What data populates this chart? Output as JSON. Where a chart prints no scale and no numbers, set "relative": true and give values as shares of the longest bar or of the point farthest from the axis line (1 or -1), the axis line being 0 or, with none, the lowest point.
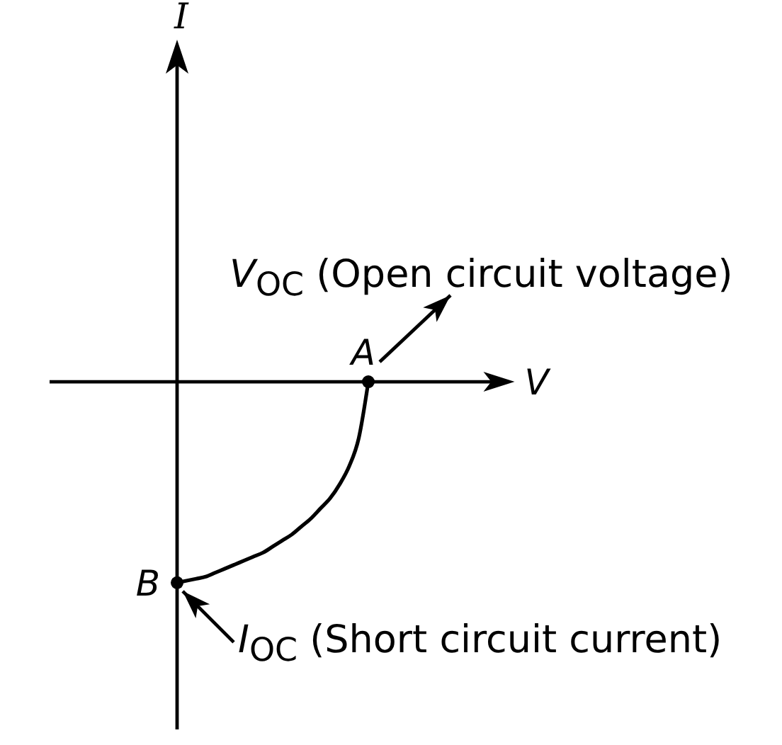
{
  "chart_data": {
    "type": "line",
    "xlabel": "V",
    "relative": true,
    "categories": [
      null,
      null,
      null,
      null,
      null,
      null,
      null,
      null,
      null,
      null,
      null,
      null,
      null,
      null,
      null,
      null,
      null,
      null,
      null,
      null,
      null,
      null,
      null,
      null,
      null,
      null,
      null,
      null,
      null,
      null,
      null,
      null,
      null,
      null,
      null,
      null
    ],
    "values": [
      -1,
      -0.99,
      -0.98,
      -0.97,
      -0.95,
      -0.93,
      -0.91,
      -0.89,
      -0.87,
      -0.85,
      -0.82,
      -0.79,
      -0.76,
      -0.72,
      -0.68,
      -0.63,
      -0.58,
      -0.51,
      -0.42,
      -0.28,
      0,
      null,
      null,
      null,
      null,
      null,
      null,
      null,
      null,
      null,
      null,
      null,
      null,
      null,
      null,
      null
    ],
    "color": "#000000",
    "annotations": [
      "A",
      "B",
      "V$_{OC}$ (Open circuit voltage)",
      "I$_{OC}$ (Short circuit current)",
      "I"
    ]
  }
}
